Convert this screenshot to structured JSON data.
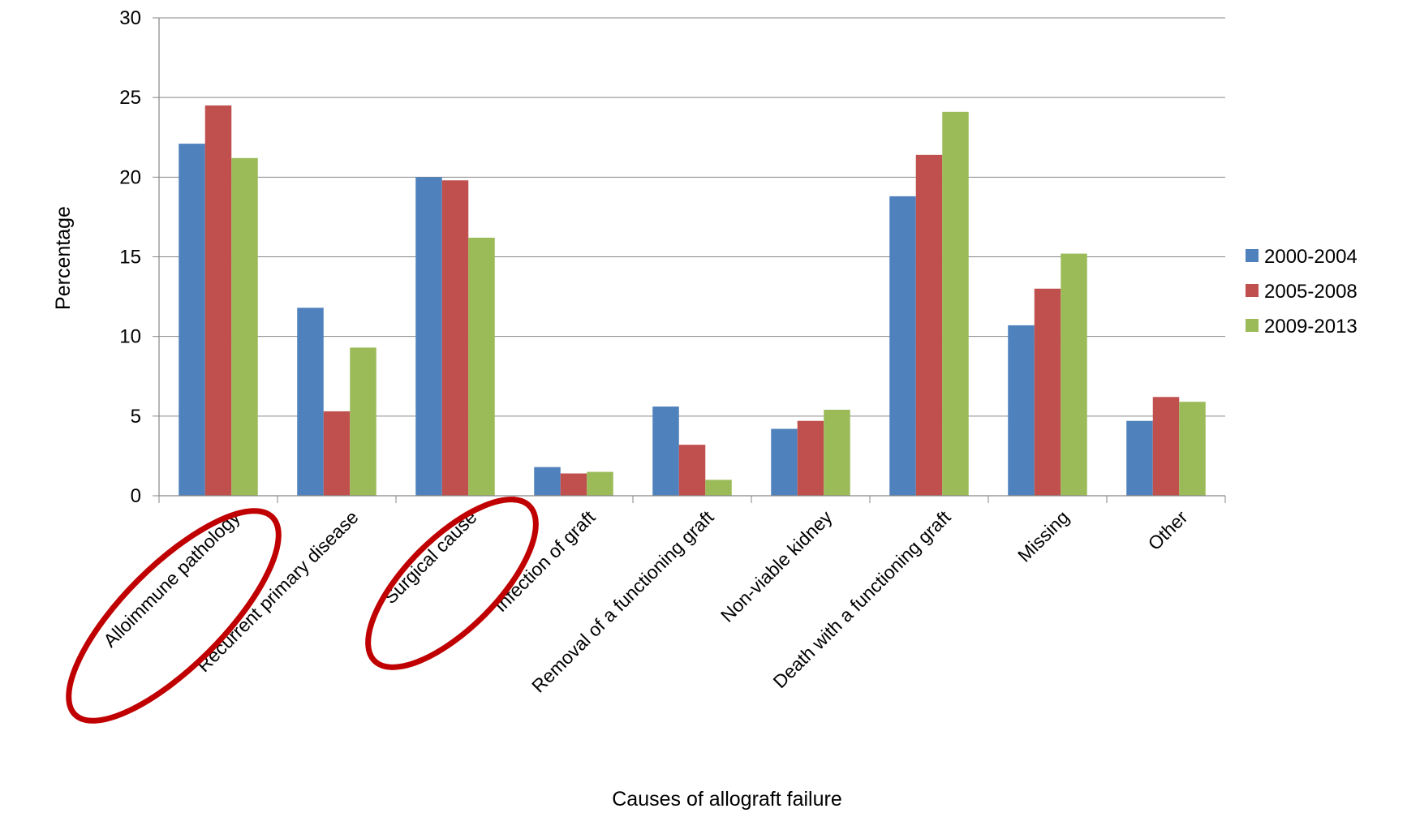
{
  "chart_data": {
    "type": "bar",
    "title": "",
    "xlabel": "Causes of allograft failure",
    "ylabel": "Percentage",
    "ylim": [
      0,
      30
    ],
    "yticks": [
      0,
      5,
      10,
      15,
      20,
      25,
      30
    ],
    "grid": true,
    "legend_position": "right",
    "categories": [
      "Alloimmune pathology",
      "Recurrent primary disease",
      "Surgical cause",
      "Infection of graft",
      "Removal of a functioning graft",
      "Non-viable kidney",
      "Death with a functioning graft",
      "Missing",
      "Other"
    ],
    "series": [
      {
        "name": "2000-2004",
        "color": "#4f81bd",
        "values": [
          22.1,
          11.8,
          20.0,
          1.8,
          5.6,
          4.2,
          18.8,
          10.7,
          4.7
        ]
      },
      {
        "name": "2005-2008",
        "color": "#c0504d",
        "values": [
          24.5,
          5.3,
          19.8,
          1.4,
          3.2,
          4.7,
          21.4,
          13.0,
          6.2
        ]
      },
      {
        "name": "2009-2013",
        "color": "#9bbb59",
        "values": [
          21.2,
          9.3,
          16.2,
          1.5,
          1.0,
          5.4,
          24.1,
          15.2,
          5.9
        ]
      }
    ],
    "annotations": [
      {
        "type": "ellipse-highlight",
        "category": "Alloimmune pathology",
        "color": "#c00000"
      },
      {
        "type": "ellipse-highlight",
        "category": "Surgical cause",
        "color": "#c00000"
      }
    ]
  }
}
